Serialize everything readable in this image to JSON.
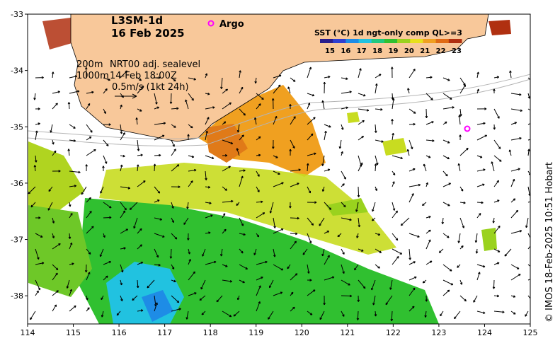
{
  "title_line1": "L3SM-1d",
  "title_line2": "16 Feb 2025",
  "argo_label": "Argo",
  "colorbar": {
    "title": "SST (°C) 1d ngt-only comp QL>=3",
    "ticks": [
      "15",
      "16",
      "17",
      "18",
      "19",
      "20",
      "21",
      "22",
      "23"
    ],
    "colors": [
      "#2a1e8c",
      "#2f3fd0",
      "#1e8ce6",
      "#21c2e0",
      "#20c880",
      "#30c030",
      "#9ad21e",
      "#e8e01c",
      "#f0a020",
      "#e06a14",
      "#b03010"
    ]
  },
  "annotations": {
    "contour1": "200m",
    "contour2": "1000m",
    "sealevel": "NRT00 adj. sealevel",
    "sealevel_time": "14-Feb 18:00Z",
    "vector_scale": "0.5m/s (1kt 24h)"
  },
  "credit": "© IMOS 18-Feb-2025 10:51 Hobart",
  "axes": {
    "x_ticks": [
      "114",
      "115",
      "116",
      "117",
      "118",
      "119",
      "120",
      "121",
      "122",
      "123",
      "124",
      "125"
    ],
    "y_ticks": [
      "-33",
      "-34",
      "-35",
      "-36",
      "-37",
      "-38"
    ]
  },
  "colors": {
    "land": "#f8c89a",
    "frame": "#000000",
    "argo": "#ff00ff",
    "contour": "#b4b4b4"
  }
}
